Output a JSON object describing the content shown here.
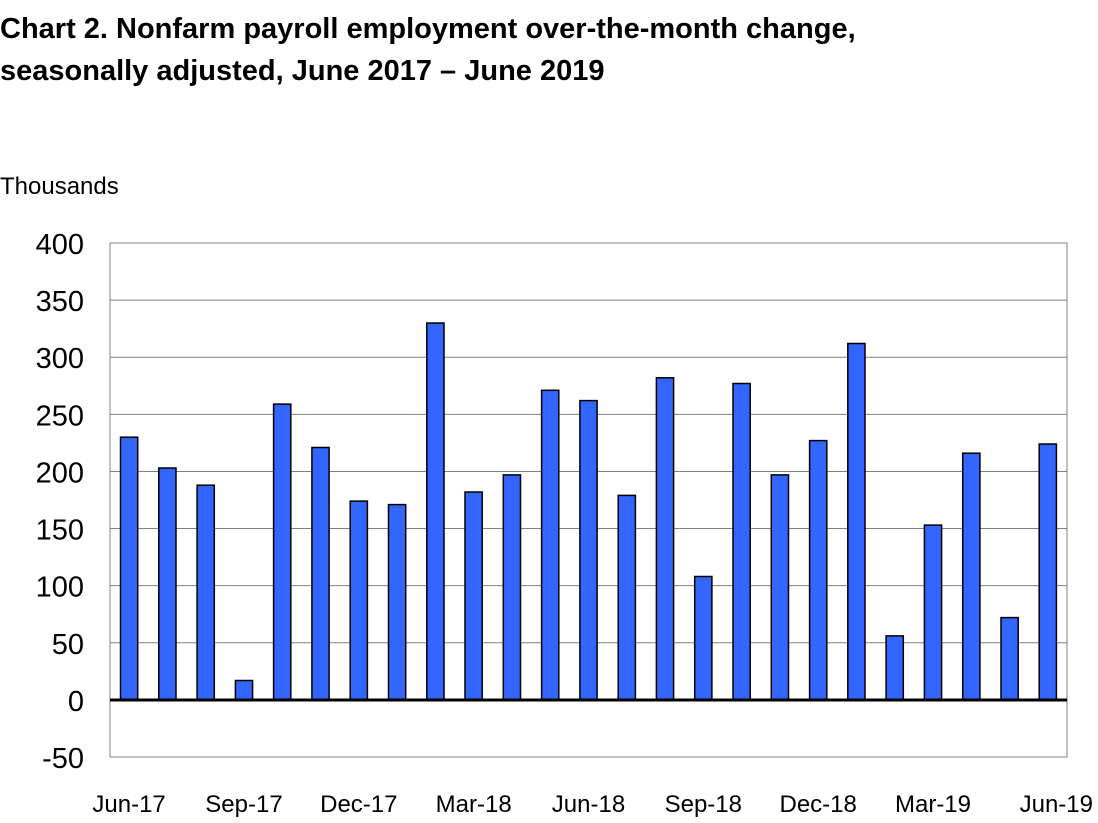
{
  "chart_data": {
    "type": "bar",
    "title_line1": "Chart 2. Nonfarm payroll employment over-the-month change,",
    "title_line2": "seasonally adjusted, June 2017 – June 2019",
    "ylabel": "Thousands",
    "xlabel": "",
    "ylim": [
      -50,
      400
    ],
    "yticks": [
      400,
      350,
      300,
      250,
      200,
      150,
      100,
      50,
      0,
      -50
    ],
    "grid": true,
    "legend": "none",
    "bar_color": "#3366ff",
    "bar_edge_color": "#000000",
    "months": [
      "Jun-17",
      "Jul-17",
      "Aug-17",
      "Sep-17",
      "Oct-17",
      "Nov-17",
      "Dec-17",
      "Jan-18",
      "Feb-18",
      "Mar-18",
      "Apr-18",
      "May-18",
      "Jun-18",
      "Jul-18",
      "Aug-18",
      "Sep-18",
      "Oct-18",
      "Nov-18",
      "Dec-18",
      "Jan-19",
      "Feb-19",
      "Mar-19",
      "Apr-19",
      "May-19",
      "Jun-19"
    ],
    "values": [
      230,
      203,
      188,
      17,
      259,
      221,
      174,
      171,
      330,
      182,
      197,
      271,
      262,
      179,
      282,
      108,
      277,
      197,
      227,
      312,
      56,
      153,
      216,
      72,
      224
    ],
    "x_tick_labels": [
      "Jun-17",
      "Sep-17",
      "Dec-17",
      "Mar-18",
      "Jun-18",
      "Sep-18",
      "Dec-18",
      "Mar-19",
      "Jun-19"
    ]
  }
}
